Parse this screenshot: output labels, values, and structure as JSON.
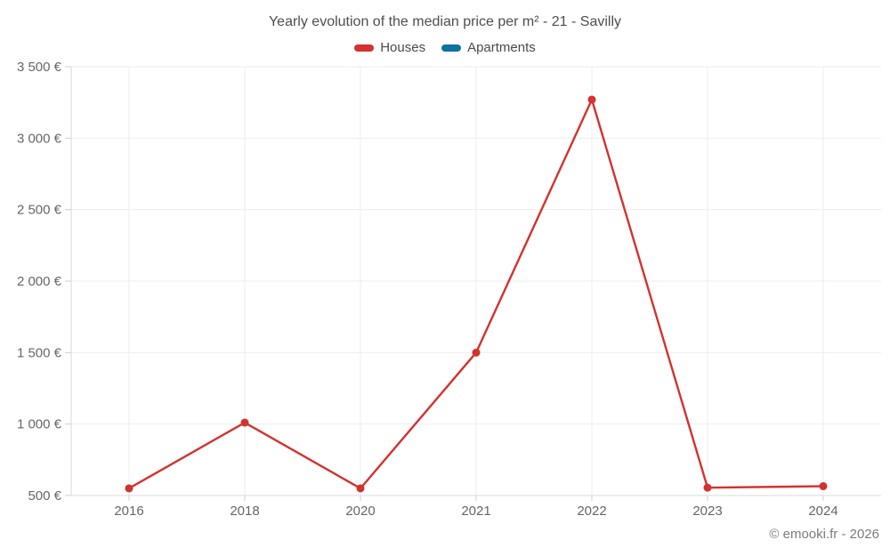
{
  "header": {
    "title": "Yearly evolution of the median price per m² - 21 - Savilly"
  },
  "legend": {
    "items": [
      {
        "label": "Houses",
        "color": "#d3322e"
      },
      {
        "label": "Apartments",
        "color": "#0e72a3"
      }
    ]
  },
  "chart_data": {
    "type": "line",
    "title": "Yearly evolution of the median price per m² - 21 - Savilly",
    "categories": [
      "2016",
      "2018",
      "2020",
      "2021",
      "2022",
      "2023",
      "2024"
    ],
    "series": [
      {
        "name": "Houses",
        "color": "#d3322e",
        "values": [
          550,
          1010,
          550,
          1500,
          3270,
          555,
          565
        ]
      },
      {
        "name": "Apartments",
        "color": "#0e72a3",
        "values": []
      }
    ],
    "xlabel": "",
    "ylabel": "",
    "ylim": [
      500,
      3500
    ],
    "y_tick_step": 500,
    "y_tick_labels": [
      "500 €",
      "1 000 €",
      "1 500 €",
      "2 000 €",
      "2 500 €",
      "3 000 €",
      "3 500 €"
    ],
    "grid": true,
    "legend_position": "top",
    "colors": {
      "gridline": "#eeeeee",
      "axis_line": "#d9d9d9",
      "tick": "#cfcfcf",
      "tick_label": "#666666",
      "title_text": "#4e4e4e"
    }
  },
  "footer": {
    "copyright": "© emooki.fr - 2026"
  }
}
